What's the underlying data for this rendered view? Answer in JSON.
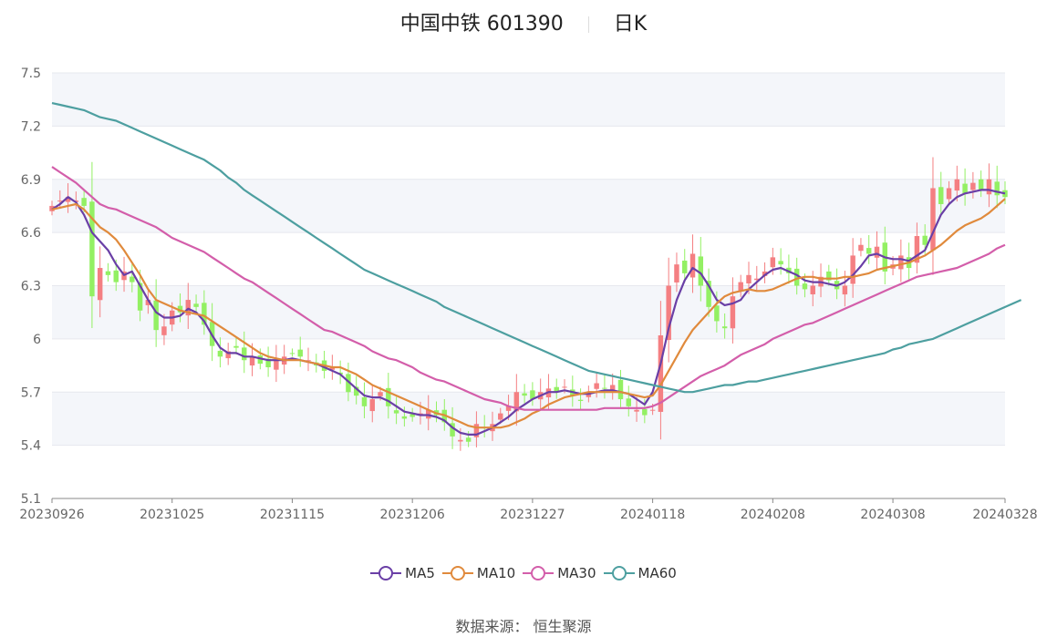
{
  "header": {
    "stock_name": "中国中铁",
    "stock_code": "601390",
    "period": "日K"
  },
  "source": {
    "label": "数据来源：",
    "value": "恒生聚源"
  },
  "colors": {
    "up": "#f47f82",
    "down": "#93f063",
    "grid": "#e6e8ee",
    "band": "#f4f6fa",
    "axis": "#666666"
  },
  "chart_data": {
    "type": "candlestick",
    "ylim": [
      5.1,
      7.5
    ],
    "yticks": [
      5.1,
      5.4,
      5.7,
      6,
      6.3,
      6.6,
      6.9,
      7.2,
      7.5
    ],
    "xticks": [
      {
        "label": "20230926",
        "index": 0
      },
      {
        "label": "20231025",
        "index": 15
      },
      {
        "label": "20231115",
        "index": 30
      },
      {
        "label": "20231206",
        "index": 45
      },
      {
        "label": "20231227",
        "index": 60
      },
      {
        "label": "20240118",
        "index": 75
      },
      {
        "label": "20240208",
        "index": 90
      },
      {
        "label": "20240308",
        "index": 105
      },
      {
        "label": "20240328",
        "index": 119
      }
    ],
    "close": [
      6.75,
      6.78,
      6.8,
      6.78,
      6.75,
      6.24,
      6.4,
      6.36,
      6.32,
      6.38,
      6.32,
      6.16,
      6.22,
      6.05,
      6.07,
      6.16,
      6.15,
      6.22,
      6.18,
      6.08,
      5.96,
      5.9,
      5.93,
      5.95,
      5.88,
      5.9,
      5.86,
      5.84,
      5.88,
      5.9,
      5.92,
      5.9,
      5.88,
      5.85,
      5.82,
      5.84,
      5.8,
      5.7,
      5.68,
      5.62,
      5.66,
      5.7,
      5.62,
      5.58,
      5.55,
      5.56,
      5.58,
      5.6,
      5.57,
      5.53,
      5.45,
      5.43,
      5.42,
      5.52,
      5.5,
      5.52,
      5.58,
      5.62,
      5.7,
      5.68,
      5.66,
      5.7,
      5.72,
      5.7,
      5.73,
      5.68,
      5.65,
      5.7,
      5.75,
      5.72,
      5.74,
      5.66,
      5.62,
      5.6,
      5.57,
      5.6,
      6.02,
      6.3,
      6.42,
      6.37,
      6.48,
      6.3,
      6.18,
      6.1,
      6.06,
      6.24,
      6.32,
      6.36,
      6.34,
      6.38,
      6.46,
      6.42,
      6.37,
      6.3,
      6.28,
      6.3,
      6.35,
      6.33,
      6.28,
      6.3,
      6.47,
      6.53,
      6.48,
      6.52,
      6.38,
      6.42,
      6.47,
      6.4,
      6.58,
      6.53,
      6.85,
      6.76,
      6.85,
      6.9,
      6.82,
      6.88,
      6.84,
      6.9,
      6.81,
      6.8
    ],
    "series": [
      {
        "name": "MA5",
        "color": "#6a3fa6",
        "values": [
          6.73,
          6.76,
          6.8,
          6.77,
          6.7,
          6.6,
          6.55,
          6.5,
          6.42,
          6.36,
          6.38,
          6.3,
          6.22,
          6.15,
          6.12,
          6.12,
          6.13,
          6.17,
          6.15,
          6.1,
          6.02,
          5.95,
          5.92,
          5.92,
          5.9,
          5.9,
          5.89,
          5.88,
          5.88,
          5.88,
          5.89,
          5.88,
          5.87,
          5.86,
          5.84,
          5.82,
          5.8,
          5.76,
          5.72,
          5.68,
          5.67,
          5.67,
          5.65,
          5.62,
          5.59,
          5.58,
          5.57,
          5.57,
          5.56,
          5.54,
          5.5,
          5.47,
          5.46,
          5.46,
          5.48,
          5.5,
          5.53,
          5.56,
          5.6,
          5.63,
          5.66,
          5.68,
          5.7,
          5.7,
          5.71,
          5.7,
          5.69,
          5.69,
          5.7,
          5.71,
          5.71,
          5.7,
          5.69,
          5.66,
          5.63,
          5.7,
          5.86,
          6.06,
          6.22,
          6.33,
          6.4,
          6.37,
          6.3,
          6.22,
          6.19,
          6.2,
          6.22,
          6.28,
          6.32,
          6.36,
          6.39,
          6.4,
          6.38,
          6.36,
          6.33,
          6.32,
          6.32,
          6.31,
          6.3,
          6.32,
          6.36,
          6.41,
          6.47,
          6.48,
          6.46,
          6.45,
          6.45,
          6.44,
          6.47,
          6.5,
          6.6,
          6.7,
          6.76,
          6.8,
          6.82,
          6.83,
          6.84,
          6.84,
          6.83,
          6.82
        ]
      },
      {
        "name": "MA10",
        "color": "#e08a3c",
        "values": [
          6.73,
          6.74,
          6.75,
          6.76,
          6.73,
          6.68,
          6.63,
          6.6,
          6.56,
          6.5,
          6.43,
          6.36,
          6.28,
          6.22,
          6.2,
          6.18,
          6.16,
          6.15,
          6.14,
          6.13,
          6.1,
          6.07,
          6.04,
          6.01,
          5.98,
          5.95,
          5.92,
          5.9,
          5.89,
          5.88,
          5.88,
          5.88,
          5.87,
          5.86,
          5.85,
          5.84,
          5.84,
          5.82,
          5.8,
          5.77,
          5.74,
          5.72,
          5.7,
          5.68,
          5.66,
          5.64,
          5.62,
          5.6,
          5.58,
          5.57,
          5.55,
          5.53,
          5.51,
          5.5,
          5.5,
          5.5,
          5.5,
          5.51,
          5.53,
          5.55,
          5.58,
          5.6,
          5.63,
          5.65,
          5.67,
          5.68,
          5.69,
          5.7,
          5.7,
          5.7,
          5.7,
          5.7,
          5.69,
          5.68,
          5.67,
          5.68,
          5.74,
          5.82,
          5.9,
          5.98,
          6.05,
          6.1,
          6.15,
          6.2,
          6.24,
          6.26,
          6.27,
          6.28,
          6.27,
          6.27,
          6.28,
          6.3,
          6.32,
          6.34,
          6.35,
          6.35,
          6.34,
          6.34,
          6.34,
          6.35,
          6.35,
          6.36,
          6.37,
          6.39,
          6.4,
          6.41,
          6.42,
          6.43,
          6.45,
          6.47,
          6.5,
          6.53,
          6.57,
          6.61,
          6.64,
          6.66,
          6.68,
          6.71,
          6.75,
          6.79
        ]
      },
      {
        "name": "MA30",
        "color": "#d35eaa",
        "values": [
          6.97,
          6.94,
          6.91,
          6.88,
          6.84,
          6.8,
          6.76,
          6.74,
          6.73,
          6.71,
          6.69,
          6.67,
          6.65,
          6.63,
          6.6,
          6.57,
          6.55,
          6.53,
          6.51,
          6.49,
          6.46,
          6.43,
          6.4,
          6.37,
          6.34,
          6.32,
          6.29,
          6.26,
          6.23,
          6.2,
          6.17,
          6.14,
          6.11,
          6.08,
          6.05,
          6.04,
          6.02,
          6,
          5.98,
          5.96,
          5.93,
          5.91,
          5.89,
          5.88,
          5.86,
          5.84,
          5.81,
          5.79,
          5.77,
          5.76,
          5.74,
          5.72,
          5.7,
          5.68,
          5.66,
          5.65,
          5.64,
          5.62,
          5.61,
          5.6,
          5.6,
          5.6,
          5.6,
          5.6,
          5.6,
          5.6,
          5.6,
          5.6,
          5.6,
          5.61,
          5.61,
          5.61,
          5.61,
          5.61,
          5.61,
          5.62,
          5.64,
          5.67,
          5.7,
          5.73,
          5.76,
          5.79,
          5.81,
          5.83,
          5.85,
          5.88,
          5.91,
          5.93,
          5.95,
          5.97,
          6,
          6.02,
          6.04,
          6.06,
          6.08,
          6.09,
          6.11,
          6.13,
          6.15,
          6.17,
          6.19,
          6.21,
          6.23,
          6.25,
          6.27,
          6.29,
          6.31,
          6.33,
          6.35,
          6.36,
          6.37,
          6.38,
          6.39,
          6.4,
          6.42,
          6.44,
          6.46,
          6.48,
          6.51,
          6.53
        ]
      },
      {
        "name": "MA60",
        "color": "#4d9fa0",
        "values": [
          7.33,
          7.32,
          7.31,
          7.3,
          7.29,
          7.27,
          7.25,
          7.24,
          7.23,
          7.21,
          7.19,
          7.17,
          7.15,
          7.13,
          7.11,
          7.09,
          7.07,
          7.05,
          7.03,
          7.01,
          6.98,
          6.95,
          6.91,
          6.88,
          6.84,
          6.81,
          6.78,
          6.75,
          6.72,
          6.69,
          6.66,
          6.63,
          6.6,
          6.57,
          6.54,
          6.51,
          6.48,
          6.45,
          6.42,
          6.39,
          6.37,
          6.35,
          6.33,
          6.31,
          6.29,
          6.27,
          6.25,
          6.23,
          6.21,
          6.18,
          6.16,
          6.14,
          6.12,
          6.1,
          6.08,
          6.06,
          6.04,
          6.02,
          6,
          5.98,
          5.96,
          5.94,
          5.92,
          5.9,
          5.88,
          5.86,
          5.84,
          5.82,
          5.81,
          5.8,
          5.79,
          5.78,
          5.77,
          5.76,
          5.75,
          5.74,
          5.73,
          5.72,
          5.71,
          5.7,
          5.7,
          5.71,
          5.72,
          5.73,
          5.74,
          5.74,
          5.75,
          5.76,
          5.76,
          5.77,
          5.78,
          5.79,
          5.8,
          5.81,
          5.82,
          5.83,
          5.84,
          5.85,
          5.86,
          5.87,
          5.88,
          5.89,
          5.9,
          5.91,
          5.92,
          5.94,
          5.95,
          5.97,
          5.98,
          5.99,
          6,
          6.02,
          6.04,
          6.06,
          6.08,
          6.1,
          6.12,
          6.14,
          6.16,
          6.18,
          6.2,
          6.22
        ]
      }
    ]
  }
}
